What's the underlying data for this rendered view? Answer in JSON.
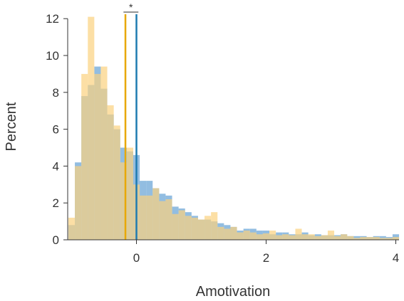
{
  "chart_data": {
    "type": "bar",
    "xlabel": "Amotivation",
    "ylabel": "Percent",
    "xlim": [
      -1.05,
      4.05
    ],
    "ylim": [
      0,
      12.2
    ],
    "x_ticks": [
      0,
      2,
      4
    ],
    "y_ticks": [
      0,
      2,
      4,
      6,
      8,
      10,
      12
    ],
    "bin_start": -1.05,
    "bin_width": 0.1,
    "series": [
      {
        "color": "#7fb2dc",
        "values": [
          0.8,
          4.2,
          7.8,
          8.4,
          9.4,
          8.2,
          6.8,
          6.0,
          5.0,
          4.8,
          4.6,
          3.2,
          3.2,
          2.8,
          2.5,
          2.4,
          1.8,
          1.7,
          1.5,
          1.3,
          1.1,
          1.1,
          1.0,
          0.9,
          0.8,
          0.7,
          0.5,
          0.6,
          0.6,
          0.5,
          0.5,
          0.3,
          0.4,
          0.4,
          0.3,
          0.3,
          0.4,
          0.25,
          0.3,
          0.25,
          0.25,
          0.25,
          0.3,
          0.2,
          0.2,
          0.2,
          0.15,
          0.2,
          0.2,
          0.15,
          0.3
        ]
      },
      {
        "color": "#fbd27f",
        "values": [
          1.2,
          4.0,
          9.0,
          12.1,
          9.0,
          9.4,
          7.3,
          6.2,
          4.2,
          5.0,
          3.0,
          2.4,
          2.4,
          2.8,
          2.1,
          2.2,
          1.4,
          1.6,
          1.3,
          1.2,
          1.1,
          1.3,
          1.5,
          0.7,
          0.6,
          0.7,
          0.4,
          0.5,
          0.4,
          0.3,
          0.35,
          0.5,
          0.25,
          0.3,
          0.25,
          0.6,
          0.3,
          0.3,
          0.2,
          0.25,
          0.5,
          0.2,
          0.3,
          0.2,
          0.1,
          0.15,
          0.15,
          0.15,
          0.1,
          0.1,
          0.15
        ]
      }
    ],
    "reference_lines": [
      {
        "x": -0.17,
        "color": "#e8a800"
      },
      {
        "x": 0.0,
        "color": "#1f7bb0"
      }
    ],
    "significance": {
      "label": "*",
      "x1": -0.2,
      "x2": 0.03
    },
    "grid": false
  }
}
